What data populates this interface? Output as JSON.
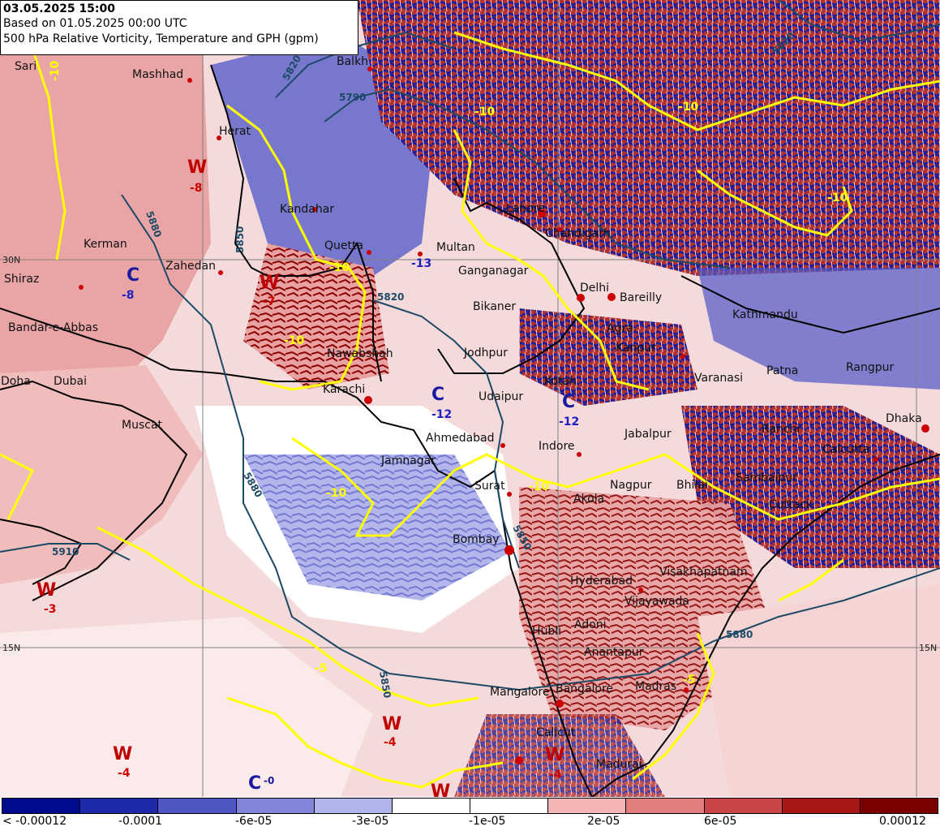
{
  "header": {
    "valid_time": "03.05.2025 15:00",
    "based_on": "Based on 01.05.2025 00:00 UTC",
    "description": "500 hPa Relative Vorticity, Temperature and GPH (gpm)"
  },
  "grid_labels": [
    "30N",
    "15N",
    "15N"
  ],
  "cities": [
    "Mashhad",
    "Balkh",
    "Herat",
    "Kandahar",
    "Quetta",
    "Multan",
    "Lahore",
    "Chandigarh",
    "Delhi",
    "Bareilly",
    "Zahedan",
    "Kerman",
    "Shiraz",
    "Bandar-e-Abbas",
    "Doha",
    "Dubai",
    "Muscat",
    "Karachi",
    "Nawabshah",
    "Ganganagar",
    "Bikaner",
    "Jodhpur",
    "Agra",
    "Kanpur",
    "Kathmandu",
    "Patna",
    "Varanasi",
    "Kotah",
    "Udaipur",
    "Ahmedabad",
    "Indore",
    "Jabalpur",
    "Jamnagar",
    "Surat",
    "Bombay",
    "Akola",
    "Nagpur",
    "Bhilai",
    "Ranchi",
    "Calcutta",
    "Dhaka",
    "Sambalpur",
    "Cuttack",
    "Hyderabad",
    "Visakhapatnam",
    "Vijayawada",
    "Hubli",
    "Adoni",
    "Anantapur",
    "Mangalore",
    "Bangalore",
    "Madras",
    "Calicut",
    "Madurai",
    "Sari",
    "Rangpur"
  ],
  "pressure_centers": [
    {
      "type": "W",
      "value": "-8"
    },
    {
      "type": "C",
      "value": "-8"
    },
    {
      "type": "W",
      "value": "-7"
    },
    {
      "type": "C",
      "value": "-13"
    },
    {
      "type": "C",
      "value": "-12"
    },
    {
      "type": "C",
      "value": "-12"
    },
    {
      "type": "W",
      "value": "-3"
    },
    {
      "type": "W",
      "value": "-4"
    },
    {
      "type": "W",
      "value": "-4"
    },
    {
      "type": "W",
      "value": "-4"
    },
    {
      "type": "C",
      "value": "-0"
    },
    {
      "type": "W",
      "value": "-4"
    }
  ],
  "contour_labels": [
    "5820",
    "5790",
    "5880",
    "5850",
    "5820",
    "5880",
    "5850",
    "5910",
    "5880",
    "5850",
    "5820"
  ],
  "temp_labels": [
    "-10",
    "-10",
    "-10",
    "-10",
    "-10",
    "-10",
    "-5",
    "-5",
    "-10",
    "-10"
  ],
  "legend": {
    "colors": [
      "#000a8c",
      "#1f2aa8",
      "#4f56c4",
      "#8085d8",
      "#b0b4ea",
      "#ffffff",
      "#ffffff",
      "#f3b5b5",
      "#e07e7e",
      "#c84646",
      "#a81616",
      "#7a0000"
    ],
    "labels": [
      "< -0.00012",
      "-0.0001",
      "-6e-05",
      "-3e-05",
      "-1e-05",
      "2e-05",
      "6e-05",
      "0.00012"
    ]
  }
}
